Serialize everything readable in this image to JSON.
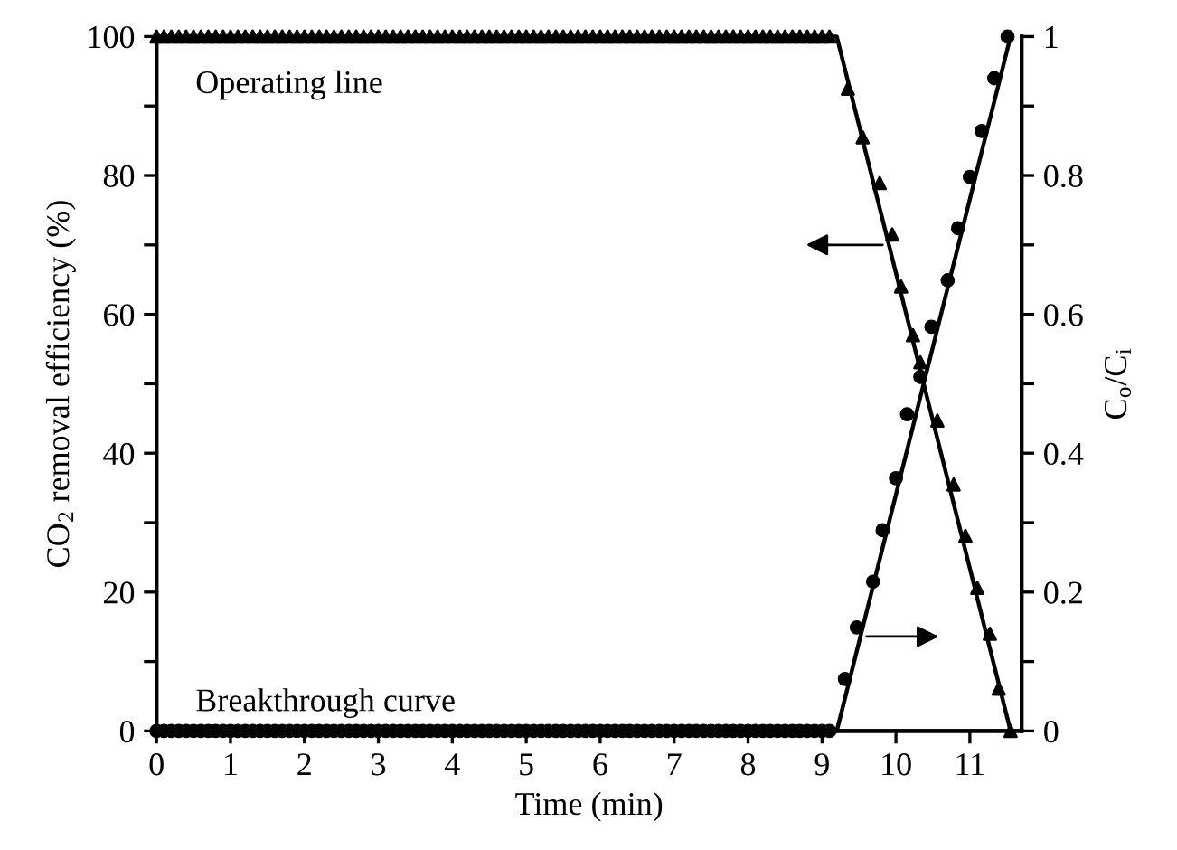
{
  "chart_data": {
    "type": "scatter",
    "xlabel": "Time (min)",
    "ylabel": "CO$_{2}$ removal efficiency (%)",
    "y2label": "C$_{o}$/C$_{i}$",
    "xlim": [
      0,
      11.7
    ],
    "xticks": [
      0,
      1,
      2,
      3,
      4,
      5,
      6,
      7,
      8,
      9,
      10,
      11
    ],
    "ylim": [
      0,
      100
    ],
    "yticks": [
      0,
      {
        "value": 10,
        "label": null
      },
      20,
      {
        "value": 30,
        "label": null
      },
      40,
      {
        "value": 50,
        "label": null
      },
      60,
      {
        "value": 70,
        "label": null
      },
      80,
      {
        "value": 90,
        "label": null
      },
      100
    ],
    "y2lim": [
      0,
      1
    ],
    "y2ticks": [
      0,
      {
        "value": 0.1,
        "label": null
      },
      0.2,
      {
        "value": 0.3,
        "label": null
      },
      0.4,
      {
        "value": 0.5,
        "label": null
      },
      0.6,
      {
        "value": 0.7,
        "label": null
      },
      0.8,
      {
        "value": 0.9,
        "label": null
      },
      1
    ],
    "grid": false,
    "legend": false,
    "annotations": [
      "Operating line",
      "Breakthrough curve"
    ],
    "series": [
      {
        "axis": "y",
        "marker": "triangle",
        "color": "#000000",
        "x": [
          0,
          0.1,
          0.2,
          0.3,
          0.4,
          0.5,
          0.6,
          0.7,
          0.8,
          0.9,
          1,
          1.1,
          1.2,
          1.3,
          1.4,
          1.5,
          1.6,
          1.7,
          1.8,
          1.9,
          2,
          2.1,
          2.2,
          2.3,
          2.4,
          2.5,
          2.6,
          2.7,
          2.8,
          2.9,
          3,
          3.1,
          3.2,
          3.3,
          3.4,
          3.5,
          3.6,
          3.7,
          3.8,
          3.9,
          4,
          4.1,
          4.2,
          4.3,
          4.4,
          4.5,
          4.6,
          4.7,
          4.8,
          4.9,
          5,
          5.1,
          5.2,
          5.3,
          5.4,
          5.5,
          5.6,
          5.7,
          5.8,
          5.9,
          6,
          6.1,
          6.2,
          6.3,
          6.4,
          6.5,
          6.6,
          6.7,
          6.8,
          6.9,
          7,
          7.1,
          7.2,
          7.3,
          7.4,
          7.5,
          7.6,
          7.7,
          7.8,
          7.9,
          8,
          8.1,
          8.2,
          8.3,
          8.4,
          8.5,
          8.6,
          8.7,
          8.8,
          8.9,
          9,
          9.1,
          9.35,
          9.55,
          9.78,
          9.95,
          10.07,
          10.23,
          10.33,
          10.56,
          10.78,
          10.94,
          11.1,
          11.27,
          11.39,
          11.55
        ],
        "values": [
          100,
          100,
          100,
          100,
          100,
          100,
          100,
          100,
          100,
          100,
          100,
          100,
          100,
          100,
          100,
          100,
          100,
          100,
          100,
          100,
          100,
          100,
          100,
          100,
          100,
          100,
          100,
          100,
          100,
          100,
          100,
          100,
          100,
          100,
          100,
          100,
          100,
          100,
          100,
          100,
          100,
          100,
          100,
          100,
          100,
          100,
          100,
          100,
          100,
          100,
          100,
          100,
          100,
          100,
          100,
          100,
          100,
          100,
          100,
          100,
          100,
          100,
          100,
          100,
          100,
          100,
          100,
          100,
          100,
          100,
          100,
          100,
          100,
          100,
          100,
          100,
          100,
          100,
          100,
          100,
          100,
          100,
          100,
          100,
          100,
          100,
          100,
          100,
          100,
          100,
          100,
          100,
          92.5,
          85.5,
          78.9,
          71.5,
          64,
          57,
          53.1,
          44.7,
          35.5,
          28.1,
          20.6,
          14,
          6.1,
          0
        ]
      },
      {
        "type": "line",
        "axis": "y",
        "marker": "none",
        "line_style": "solid",
        "color": "#000000",
        "x": [
          0,
          9.2,
          11.55
        ],
        "values": [
          100,
          100,
          0
        ]
      },
      {
        "axis": "y2",
        "marker": "circle",
        "color": "#000000",
        "x": [
          0,
          0.1,
          0.2,
          0.3,
          0.4,
          0.5,
          0.6,
          0.7,
          0.8,
          0.9,
          1,
          1.1,
          1.2,
          1.3,
          1.4,
          1.5,
          1.6,
          1.7,
          1.8,
          1.9,
          2,
          2.1,
          2.2,
          2.3,
          2.4,
          2.5,
          2.6,
          2.7,
          2.8,
          2.9,
          3,
          3.1,
          3.2,
          3.3,
          3.4,
          3.5,
          3.6,
          3.7,
          3.8,
          3.9,
          4,
          4.1,
          4.2,
          4.3,
          4.4,
          4.5,
          4.6,
          4.7,
          4.8,
          4.9,
          5,
          5.1,
          5.2,
          5.3,
          5.4,
          5.5,
          5.6,
          5.7,
          5.8,
          5.9,
          6,
          6.1,
          6.2,
          6.3,
          6.4,
          6.5,
          6.6,
          6.7,
          6.8,
          6.9,
          7,
          7.1,
          7.2,
          7.3,
          7.4,
          7.5,
          7.6,
          7.7,
          7.8,
          7.9,
          8,
          8.1,
          8.2,
          8.3,
          8.4,
          8.5,
          8.6,
          8.7,
          8.8,
          8.9,
          9,
          9.1,
          9.31,
          9.47,
          9.69,
          9.82,
          10,
          10.15,
          10.33,
          10.48,
          10.7,
          10.84,
          11,
          11.16,
          11.33,
          11.51
        ],
        "values": [
          0,
          0,
          0,
          0,
          0,
          0,
          0,
          0,
          0,
          0,
          0,
          0,
          0,
          0,
          0,
          0,
          0,
          0,
          0,
          0,
          0,
          0,
          0,
          0,
          0,
          0,
          0,
          0,
          0,
          0,
          0,
          0,
          0,
          0,
          0,
          0,
          0,
          0,
          0,
          0,
          0,
          0,
          0,
          0,
          0,
          0,
          0,
          0,
          0,
          0,
          0,
          0,
          0,
          0,
          0,
          0,
          0,
          0,
          0,
          0,
          0,
          0,
          0,
          0,
          0,
          0,
          0,
          0,
          0,
          0,
          0,
          0,
          0,
          0,
          0,
          0,
          0,
          0,
          0,
          0,
          0,
          0,
          0,
          0,
          0,
          0,
          0,
          0,
          0,
          0,
          0,
          0,
          0.075,
          0.149,
          0.215,
          0.289,
          0.364,
          0.456,
          0.51,
          0.582,
          0.649,
          0.724,
          0.798,
          0.864,
          0.94,
          1
        ]
      },
      {
        "type": "line",
        "axis": "y2",
        "marker": "none",
        "line_style": "solid",
        "color": "#000000",
        "x": [
          0,
          9.2,
          11.55
        ],
        "values": [
          0,
          0,
          1
        ]
      }
    ]
  }
}
